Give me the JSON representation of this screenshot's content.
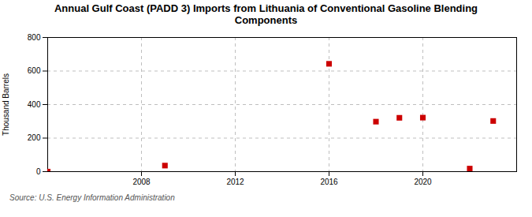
{
  "chart_data": {
    "type": "scatter",
    "title": "Annual Gulf Coast (PADD 3) Imports from Lithuania of Conventional Gasoline Blending\nComponents",
    "y_label": "Thousand Barrels",
    "annotation": "Source: U.S. Energy Information Administration",
    "x": [
      2004,
      2009,
      2016,
      2018,
      2019,
      2020,
      2022,
      2023
    ],
    "values": [
      0,
      36,
      643,
      298,
      321,
      322,
      18,
      302
    ],
    "color": "#cc0000",
    "marker": "square",
    "xlim": [
      2004,
      2024
    ],
    "xticks": [
      2008,
      2012,
      2016,
      2020
    ],
    "ylim": [
      0,
      800
    ],
    "yticks": [
      0,
      200,
      400,
      600,
      800
    ],
    "grid": true
  }
}
